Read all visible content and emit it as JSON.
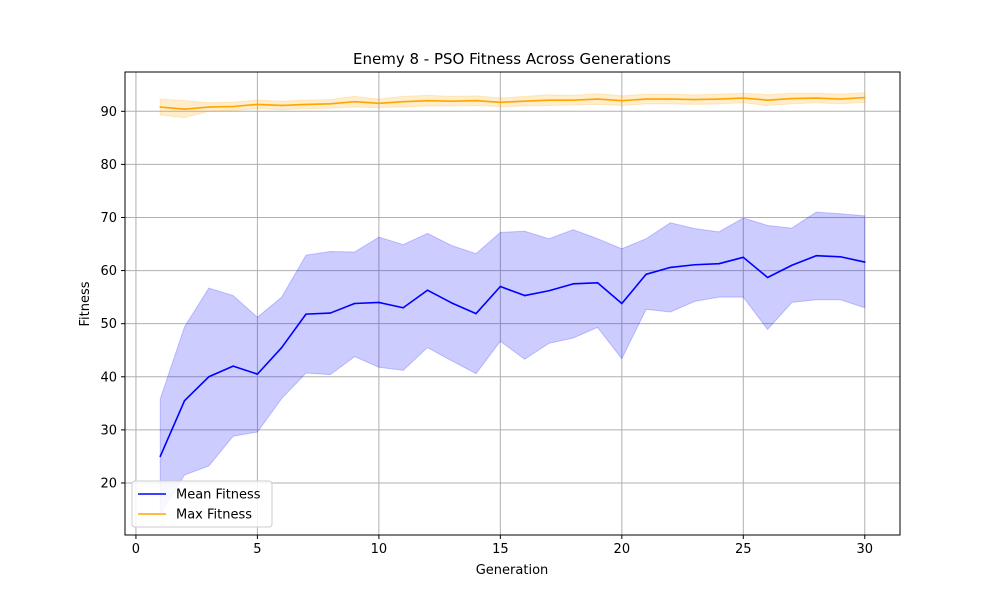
{
  "chart_data": {
    "type": "line",
    "title": "Enemy 8 - PSO Fitness Across Generations",
    "xlabel": "Generation",
    "ylabel": "Fitness",
    "xlim": [
      -0.45,
      31.45
    ],
    "ylim": [
      10.2,
      97.4
    ],
    "xticks": [
      0,
      5,
      10,
      15,
      20,
      25,
      30
    ],
    "yticks": [
      20,
      30,
      40,
      50,
      60,
      70,
      80,
      90
    ],
    "grid": true,
    "legend": "lower-left",
    "x": [
      1,
      2,
      3,
      4,
      5,
      6,
      7,
      8,
      9,
      10,
      11,
      12,
      13,
      14,
      15,
      16,
      17,
      18,
      19,
      20,
      21,
      22,
      23,
      24,
      25,
      26,
      27,
      28,
      29,
      30
    ],
    "series": [
      {
        "name": "Mean Fitness",
        "color": "#0000ff",
        "band_color": "#0000ff",
        "values": [
          25.0,
          35.5,
          40.0,
          42.0,
          40.5,
          45.5,
          51.8,
          52.0,
          53.8,
          54.0,
          53.0,
          56.3,
          53.9,
          51.9,
          57.0,
          55.3,
          56.2,
          57.5,
          57.7,
          53.8,
          59.3,
          60.6,
          61.1,
          61.3,
          62.5,
          58.7,
          61.0,
          62.8,
          62.6,
          61.6
        ],
        "lower": [
          14.2,
          21.5,
          23.2,
          28.8,
          29.6,
          35.9,
          40.7,
          40.4,
          43.8,
          41.8,
          41.2,
          45.5,
          43.0,
          40.6,
          46.7,
          43.3,
          46.3,
          47.3,
          49.3,
          43.4,
          52.7,
          52.2,
          54.2,
          55.0,
          55.0,
          48.9,
          54.0,
          54.5,
          54.5,
          53.0
        ],
        "upper": [
          35.8,
          49.4,
          56.7,
          55.3,
          51.2,
          55.0,
          62.9,
          63.6,
          63.5,
          66.3,
          64.9,
          67.0,
          64.7,
          63.2,
          67.2,
          67.4,
          66.0,
          67.7,
          66.0,
          64.1,
          66.0,
          69.0,
          67.9,
          67.3,
          69.9,
          68.5,
          68.0,
          71.0,
          70.7,
          70.3
        ]
      },
      {
        "name": "Max Fitness",
        "color": "#ffa500",
        "band_color": "#ffa500",
        "values": [
          90.8,
          90.4,
          90.8,
          90.9,
          91.3,
          91.1,
          91.3,
          91.4,
          91.8,
          91.5,
          91.8,
          92.0,
          91.9,
          92.0,
          91.7,
          91.9,
          92.1,
          92.1,
          92.3,
          92.0,
          92.3,
          92.3,
          92.2,
          92.3,
          92.5,
          92.1,
          92.4,
          92.5,
          92.3,
          92.6
        ],
        "lower": [
          89.3,
          88.8,
          90.0,
          90.1,
          90.5,
          90.3,
          90.5,
          90.6,
          90.8,
          90.7,
          90.8,
          91.0,
          91.0,
          91.1,
          90.9,
          91.0,
          91.1,
          91.2,
          91.3,
          91.1,
          91.4,
          91.4,
          91.3,
          91.4,
          91.6,
          91.1,
          91.4,
          91.6,
          91.4,
          91.7
        ],
        "upper": [
          92.3,
          92.0,
          91.6,
          91.7,
          92.1,
          91.9,
          92.1,
          92.2,
          92.8,
          92.3,
          92.8,
          93.0,
          92.8,
          92.9,
          92.5,
          92.8,
          93.1,
          93.0,
          93.3,
          92.9,
          93.2,
          93.2,
          93.1,
          93.2,
          93.4,
          93.1,
          93.4,
          93.4,
          93.2,
          93.5
        ]
      }
    ]
  }
}
